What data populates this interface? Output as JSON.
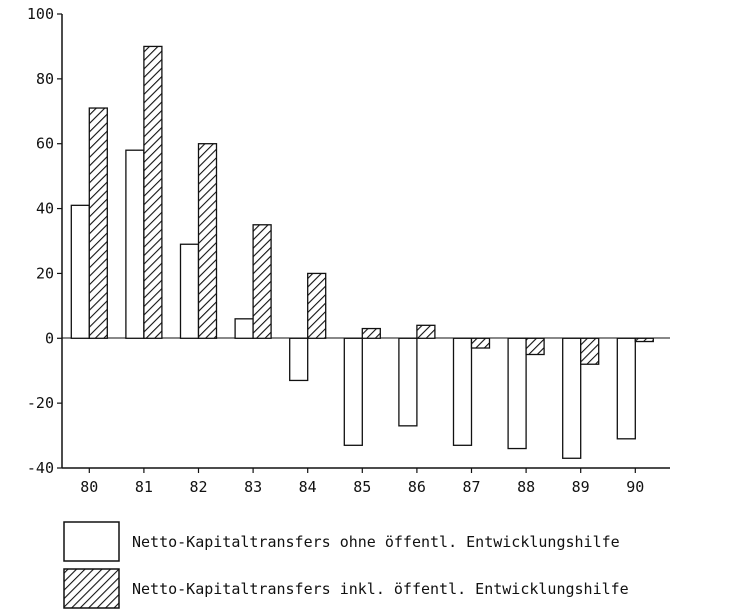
{
  "chart_data": {
    "type": "bar",
    "categories": [
      "80",
      "81",
      "82",
      "83",
      "84",
      "85",
      "86",
      "87",
      "88",
      "89",
      "90"
    ],
    "series": [
      {
        "name": "Netto-Kapitaltransfers ohne öffentl. Entwicklungshilfe",
        "fill": "plain",
        "values": [
          41,
          58,
          29,
          6,
          -13,
          -33,
          -27,
          -33,
          -34,
          -37,
          -31
        ]
      },
      {
        "name": "Netto-Kapitaltransfers inkl. öffentl. Entwicklungshilfe",
        "fill": "hatched",
        "values": [
          71,
          90,
          60,
          35,
          20,
          3,
          4,
          -3,
          -5,
          -8,
          -1
        ]
      }
    ],
    "yticks": [
      "100",
      "80",
      "60",
      "40",
      "20",
      "0",
      "-20",
      "-40"
    ],
    "ylim": [
      -40,
      100
    ],
    "legend_position": "bottom",
    "grid": false,
    "colors": {
      "ink": "#111111",
      "paper": "#ffffff"
    }
  }
}
